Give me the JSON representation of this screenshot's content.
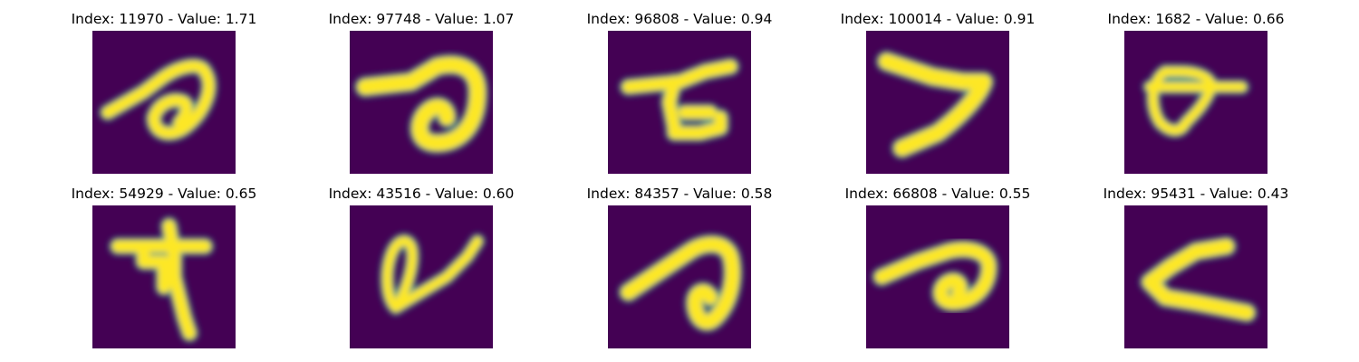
{
  "figure": {
    "background": "#ffffff",
    "colormap": "viridis",
    "colormap_low": "#440154",
    "colormap_high": "#fde725"
  },
  "panels": [
    {
      "title": "Index: 11970 - Value: 1.71",
      "index": 11970,
      "value": 1.71
    },
    {
      "title": "Index: 97748 - Value: 1.07",
      "index": 97748,
      "value": 1.07
    },
    {
      "title": "Index: 96808 - Value: 0.94",
      "index": 96808,
      "value": 0.94
    },
    {
      "title": "Index: 100014 - Value: 0.91",
      "index": 100014,
      "value": 0.91
    },
    {
      "title": "Index: 1682 - Value: 0.66",
      "index": 1682,
      "value": 0.66
    },
    {
      "title": "Index: 54929 - Value: 0.65",
      "index": 54929,
      "value": 0.65
    },
    {
      "title": "Index: 43516 - Value: 0.60",
      "index": 43516,
      "value": 0.6
    },
    {
      "title": "Index: 84357 - Value: 0.58",
      "index": 84357,
      "value": 0.58
    },
    {
      "title": "Index: 66808 - Value: 0.55",
      "index": 66808,
      "value": 0.55
    },
    {
      "title": "Index: 95431 - Value: 0.43",
      "index": 95431,
      "value": 0.43
    }
  ]
}
